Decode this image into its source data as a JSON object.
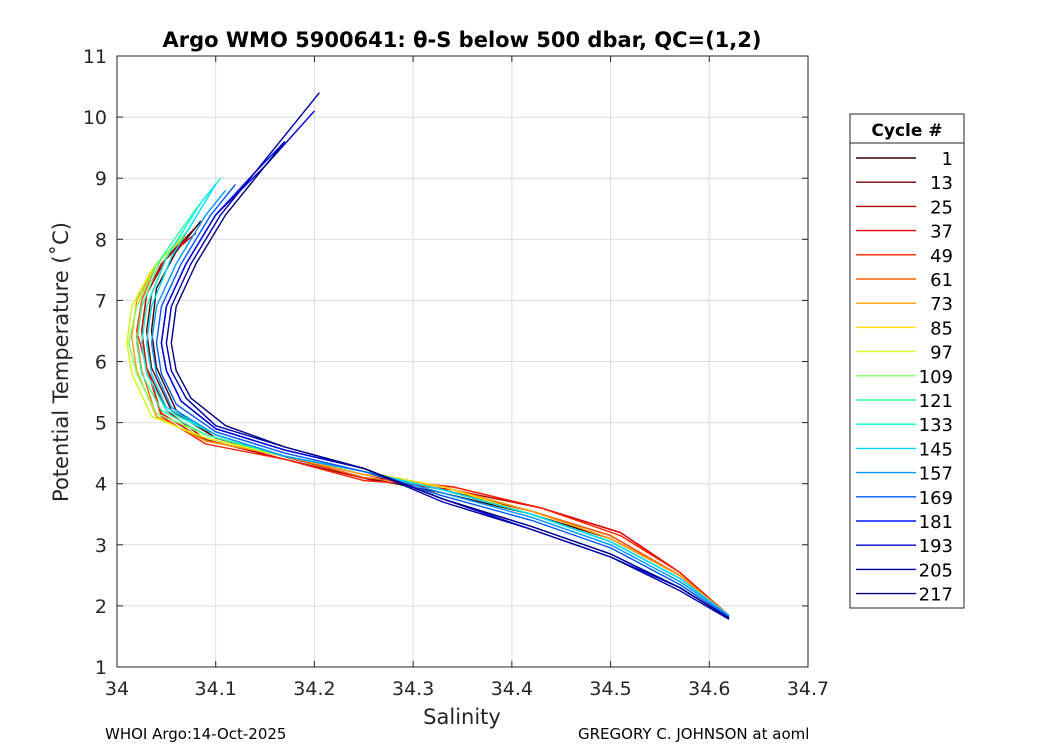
{
  "chart_data": {
    "type": "line",
    "title": "Argo WMO 5900641: θ-S below 500 dbar,  QC=(1,2)",
    "xlabel": "Salinity",
    "ylabel": "Potential Temperature (˚C)",
    "xlim": [
      34,
      34.7
    ],
    "ylim": [
      1,
      11
    ],
    "xticks": [
      "34",
      "34.1",
      "34.2",
      "34.3",
      "34.4",
      "34.5",
      "34.6",
      "34.7"
    ],
    "yticks": [
      "1",
      "2",
      "3",
      "4",
      "5",
      "6",
      "7",
      "8",
      "9",
      "10",
      "11"
    ],
    "grid": true,
    "legend": {
      "title": "Cycle #",
      "position": "right"
    },
    "series": [
      {
        "name": "1",
        "color": "#3a0000",
        "x": [
          34.62,
          34.57,
          34.5,
          34.42,
          34.33,
          34.25,
          34.18,
          34.1,
          34.06,
          34.04,
          34.035,
          34.04,
          34.06,
          34.085
        ],
        "y": [
          1.84,
          2.5,
          3.1,
          3.5,
          3.85,
          4.1,
          4.4,
          4.75,
          5.2,
          5.9,
          6.5,
          7.2,
          7.8,
          8.3
        ]
      },
      {
        "name": "13",
        "color": "#6e0000",
        "x": [
          34.62,
          34.57,
          34.5,
          34.42,
          34.33,
          34.25,
          34.17,
          34.1,
          34.055,
          34.035,
          34.03,
          34.035,
          34.05,
          34.08
        ],
        "y": [
          1.84,
          2.5,
          3.15,
          3.55,
          3.9,
          4.15,
          4.45,
          4.75,
          5.2,
          5.9,
          6.5,
          7.1,
          7.7,
          8.2
        ]
      },
      {
        "name": "25",
        "color": "#b00000",
        "x": [
          34.62,
          34.57,
          34.51,
          34.43,
          34.34,
          34.26,
          34.17,
          34.09,
          34.05,
          34.03,
          34.025,
          34.03,
          34.05,
          34.08
        ],
        "y": [
          1.84,
          2.55,
          3.2,
          3.6,
          3.9,
          4.05,
          4.4,
          4.72,
          5.2,
          5.9,
          6.5,
          7.1,
          7.7,
          8.1
        ]
      },
      {
        "name": "37",
        "color": "#e00000",
        "x": [
          34.62,
          34.57,
          34.51,
          34.43,
          34.34,
          34.25,
          34.17,
          34.09,
          34.045,
          34.03,
          34.025,
          34.03,
          34.045,
          34.07
        ],
        "y": [
          1.84,
          2.55,
          3.2,
          3.6,
          3.95,
          4.1,
          4.45,
          4.7,
          5.15,
          5.9,
          6.5,
          7.1,
          7.6,
          8.0
        ]
      },
      {
        "name": "49",
        "color": "#ff2000",
        "x": [
          34.62,
          34.57,
          34.51,
          34.43,
          34.34,
          34.25,
          34.17,
          34.09,
          34.045,
          34.03,
          34.02,
          34.025,
          34.04,
          34.065
        ],
        "y": [
          1.84,
          2.55,
          3.15,
          3.6,
          3.95,
          4.05,
          4.4,
          4.65,
          5.1,
          5.9,
          6.5,
          7.0,
          7.6,
          8.0
        ]
      },
      {
        "name": "61",
        "color": "#ff6000",
        "x": [
          34.62,
          34.57,
          34.5,
          34.42,
          34.33,
          34.25,
          34.17,
          34.09,
          34.04,
          34.025,
          34.02,
          34.025,
          34.04,
          34.065
        ],
        "y": [
          1.84,
          2.5,
          3.15,
          3.55,
          3.95,
          4.1,
          4.45,
          4.7,
          5.1,
          5.85,
          6.4,
          7.0,
          7.6,
          8.0
        ]
      },
      {
        "name": "73",
        "color": "#ffa000",
        "x": [
          34.62,
          34.57,
          34.5,
          34.42,
          34.33,
          34.25,
          34.17,
          34.09,
          34.04,
          34.02,
          34.015,
          34.02,
          34.04,
          34.07
        ],
        "y": [
          1.84,
          2.5,
          3.1,
          3.55,
          3.95,
          4.15,
          4.45,
          4.7,
          5.1,
          5.85,
          6.4,
          7.0,
          7.6,
          8.05
        ]
      },
      {
        "name": "85",
        "color": "#ffe000",
        "x": [
          34.62,
          34.57,
          34.5,
          34.42,
          34.33,
          34.25,
          34.17,
          34.09,
          34.035,
          34.015,
          34.01,
          34.015,
          34.035,
          34.065
        ],
        "y": [
          1.84,
          2.45,
          3.05,
          3.5,
          3.95,
          4.2,
          4.45,
          4.75,
          5.1,
          5.8,
          6.3,
          6.9,
          7.5,
          8.0
        ]
      },
      {
        "name": "97",
        "color": "#d0ff20",
        "x": [
          34.62,
          34.57,
          34.5,
          34.42,
          34.33,
          34.25,
          34.17,
          34.09,
          34.035,
          34.015,
          34.01,
          34.015,
          34.035,
          34.07
        ],
        "y": [
          1.84,
          2.45,
          3.05,
          3.5,
          3.9,
          4.2,
          4.45,
          4.75,
          5.1,
          5.8,
          6.3,
          6.9,
          7.5,
          8.1
        ]
      },
      {
        "name": "109",
        "color": "#80ff60",
        "x": [
          34.62,
          34.57,
          34.5,
          34.42,
          34.33,
          34.25,
          34.17,
          34.09,
          34.04,
          34.02,
          34.012,
          34.02,
          34.04,
          34.075
        ],
        "y": [
          1.84,
          2.45,
          3.05,
          3.5,
          3.9,
          4.2,
          4.45,
          4.8,
          5.15,
          5.8,
          6.3,
          6.9,
          7.6,
          8.2
        ]
      },
      {
        "name": "121",
        "color": "#30ffa0",
        "x": [
          34.62,
          34.57,
          34.5,
          34.42,
          34.33,
          34.25,
          34.17,
          34.09,
          34.045,
          34.025,
          34.02,
          34.025,
          34.045,
          34.08,
          34.1
        ],
        "y": [
          1.84,
          2.45,
          3.05,
          3.5,
          3.9,
          4.2,
          4.45,
          4.8,
          5.2,
          5.8,
          6.3,
          6.9,
          7.7,
          8.5,
          8.9
        ]
      },
      {
        "name": "133",
        "color": "#00ffd8",
        "x": [
          34.62,
          34.57,
          34.5,
          34.42,
          34.33,
          34.25,
          34.17,
          34.1,
          34.05,
          34.03,
          34.025,
          34.03,
          34.05,
          34.085,
          34.105
        ],
        "y": [
          1.84,
          2.45,
          3.05,
          3.5,
          3.9,
          4.2,
          4.45,
          4.8,
          5.2,
          5.8,
          6.3,
          6.9,
          7.7,
          8.6,
          9.0
        ]
      },
      {
        "name": "145",
        "color": "#00d8ff",
        "x": [
          34.62,
          34.57,
          34.5,
          34.42,
          34.33,
          34.25,
          34.17,
          34.1,
          34.05,
          34.035,
          34.03,
          34.035,
          34.055,
          34.085,
          34.1
        ],
        "y": [
          1.84,
          2.45,
          3.05,
          3.5,
          3.9,
          4.2,
          4.45,
          4.8,
          5.25,
          5.8,
          6.3,
          6.9,
          7.7,
          8.5,
          8.9
        ]
      },
      {
        "name": "157",
        "color": "#0098ff",
        "x": [
          34.62,
          34.57,
          34.5,
          34.42,
          34.33,
          34.25,
          34.17,
          34.1,
          34.055,
          34.04,
          34.035,
          34.04,
          34.06,
          34.09,
          34.11
        ],
        "y": [
          1.84,
          2.4,
          3.0,
          3.45,
          3.85,
          4.2,
          4.45,
          4.8,
          5.25,
          5.8,
          6.3,
          6.9,
          7.6,
          8.4,
          8.8
        ]
      },
      {
        "name": "169",
        "color": "#0058ff",
        "x": [
          34.62,
          34.57,
          34.5,
          34.42,
          34.33,
          34.25,
          34.17,
          34.1,
          34.06,
          34.045,
          34.04,
          34.045,
          34.065,
          34.095,
          34.12
        ],
        "y": [
          1.82,
          2.35,
          2.95,
          3.4,
          3.8,
          4.2,
          4.5,
          4.85,
          5.3,
          5.8,
          6.3,
          6.9,
          7.6,
          8.4,
          8.9
        ]
      },
      {
        "name": "181",
        "color": "#0018ff",
        "x": [
          34.62,
          34.57,
          34.5,
          34.42,
          34.33,
          34.25,
          34.17,
          34.1,
          34.065,
          34.05,
          34.045,
          34.05,
          34.07,
          34.1,
          34.14,
          34.17
        ],
        "y": [
          1.8,
          2.3,
          2.85,
          3.3,
          3.75,
          4.25,
          4.55,
          4.9,
          5.35,
          5.85,
          6.3,
          6.9,
          7.6,
          8.4,
          9.1,
          9.6
        ]
      },
      {
        "name": "193",
        "color": "#0000d8",
        "x": [
          34.62,
          34.57,
          34.5,
          34.42,
          34.33,
          34.25,
          34.17,
          34.1,
          34.065,
          34.05,
          34.045,
          34.05,
          34.07,
          34.1,
          34.15,
          34.2
        ],
        "y": [
          1.8,
          2.3,
          2.8,
          3.25,
          3.75,
          4.25,
          4.55,
          4.9,
          5.35,
          5.85,
          6.3,
          6.9,
          7.6,
          8.4,
          9.2,
          10.1
        ]
      },
      {
        "name": "205",
        "color": "#0000a8",
        "x": [
          34.62,
          34.57,
          34.5,
          34.42,
          34.33,
          34.25,
          34.17,
          34.1,
          34.07,
          34.055,
          34.05,
          34.055,
          34.075,
          34.105,
          34.15,
          34.205
        ],
        "y": [
          1.78,
          2.25,
          2.8,
          3.25,
          3.7,
          4.25,
          4.6,
          4.95,
          5.4,
          5.85,
          6.3,
          6.9,
          7.6,
          8.4,
          9.3,
          10.4
        ]
      },
      {
        "name": "217",
        "color": "#000080",
        "x": [
          34.62,
          34.57,
          34.5,
          34.42,
          34.33,
          34.25,
          34.17,
          34.11,
          34.075,
          34.06,
          34.055,
          34.06,
          34.08,
          34.11,
          34.14,
          34.17
        ],
        "y": [
          1.8,
          2.3,
          2.85,
          3.3,
          3.75,
          4.25,
          4.6,
          4.95,
          5.4,
          5.85,
          6.3,
          6.9,
          7.6,
          8.4,
          9.0,
          9.6
        ]
      }
    ]
  },
  "footer": {
    "left": "WHOI Argo:14-Oct-2025",
    "right": "GREGORY C. JOHNSON at aoml"
  }
}
